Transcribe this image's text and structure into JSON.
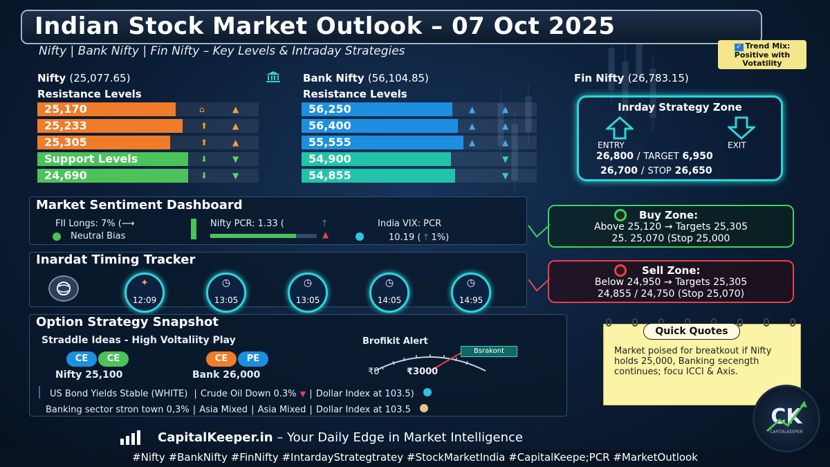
{
  "title": "Indian Stock Market Outlook – 07 Oct 2025",
  "subtitle": "Nifty | Bank Nifty | Fin Nifty – Key Levels & Intraday Strategies",
  "trend_mix": {
    "line1": "Trend Mix:",
    "line2": "Positive with",
    "line3": "Votatility"
  },
  "nifty": {
    "name": "Nifty",
    "value": "(25,077.65)",
    "resistance_label": "Resistance Levels",
    "resistance": [
      "25,170",
      "25,233",
      "25,305"
    ],
    "support_label": "Support Levels",
    "support": [
      "24,690"
    ]
  },
  "banknifty": {
    "name": "Bank Nifty",
    "value": "(56,104.85)",
    "resistance_label": "Resistance Levels",
    "levels": [
      "56,250",
      "56,400",
      "55,555",
      "54,900",
      "54,855"
    ]
  },
  "finnifty": {
    "name": "Fin Nifty",
    "value": "(26,783.15)",
    "zone_title": "Inrday Strategy Zone",
    "entry_label": "ENTRY",
    "exit_label": "EXIT",
    "line1_a": "26,800",
    "line1_sep": "/",
    "line1_b_label": "TARGET",
    "line1_b": "6,950",
    "line2_a": "26,700",
    "line2_sep": "/",
    "line2_b_label": "STOP",
    "line2_b": "26,650"
  },
  "sentiment": {
    "title": "Market Sentiment Dashboard",
    "fii": "FII Longs: 7% (⟶",
    "bias": "Neutral Bias",
    "pcr": "Nifty PCR: 1.33 (",
    "vix_label": "India VIX:  PCR",
    "vix_value": "10.19 (",
    "vix_pct": "1%)"
  },
  "buy_zone": {
    "title": "Buy Zone:",
    "line1": "Above 25,120 → Targets 25,305",
    "line2": "25. 25,070 (Stop 25,000"
  },
  "sell_zone": {
    "title": "Sell Zone:",
    "line1": "Below 24,950 → Targets 25,305",
    "line2": "24,855 / 24,750 (Stop 25,070)"
  },
  "timing": {
    "title": "Inardat Timing Tracker",
    "times": [
      "12:09",
      "13:05",
      "13:05",
      "14:05",
      "14:95"
    ]
  },
  "options": {
    "title": "Option Strategy Snapshot",
    "subtitle": "Straddle Ideas - High Voltaliity Play",
    "pill_ce1": "CE",
    "pill_ce2": "CE",
    "pill_ce3": "CE",
    "pill_pe": "PE",
    "nifty_label": "Nifty 25,100",
    "bank_label": "Bank 26,000",
    "alert_title": "Brofikit Alert",
    "alert_tag": "Bsrakont",
    "gauge_min": "₹0",
    "gauge_max": "₹3000"
  },
  "news": {
    "row1": [
      "US Bond Yields Stable (WHITE)",
      "Crude Oil Down 0.3%",
      "Dollar Index at 103.5)"
    ],
    "row2": [
      "Banking sector stron  town 0,3%",
      "Asia Mixed",
      "Asia Mixed",
      "Dollar Index at 103.5"
    ]
  },
  "quick_quotes": {
    "title": "Quick Quotes",
    "text": "Market poised for breatkout if Nifty holds 25,000, Banking secength continues; focu ICCI & Axis."
  },
  "footer": {
    "site": "CapitalKeeper.in",
    "tagline": " – Your Daily Edge in Market Intelligence"
  },
  "hashtags": "#Nifty #BankNifty #FinNifty #IntardayStrategtratey #StockMarketIndia #CapitalKeepe;PCR #MarketOutlook",
  "logo": {
    "mark": "CK",
    "name": "CAPITALKEEPER"
  },
  "colors": {
    "orange": "#f07c2a",
    "green": "#4cc25a",
    "blue": "#1e8fe0",
    "teal": "#22c3a8",
    "cyan": "#2ed4d8",
    "buy": "#3fd35a",
    "sell": "#e8414d"
  }
}
